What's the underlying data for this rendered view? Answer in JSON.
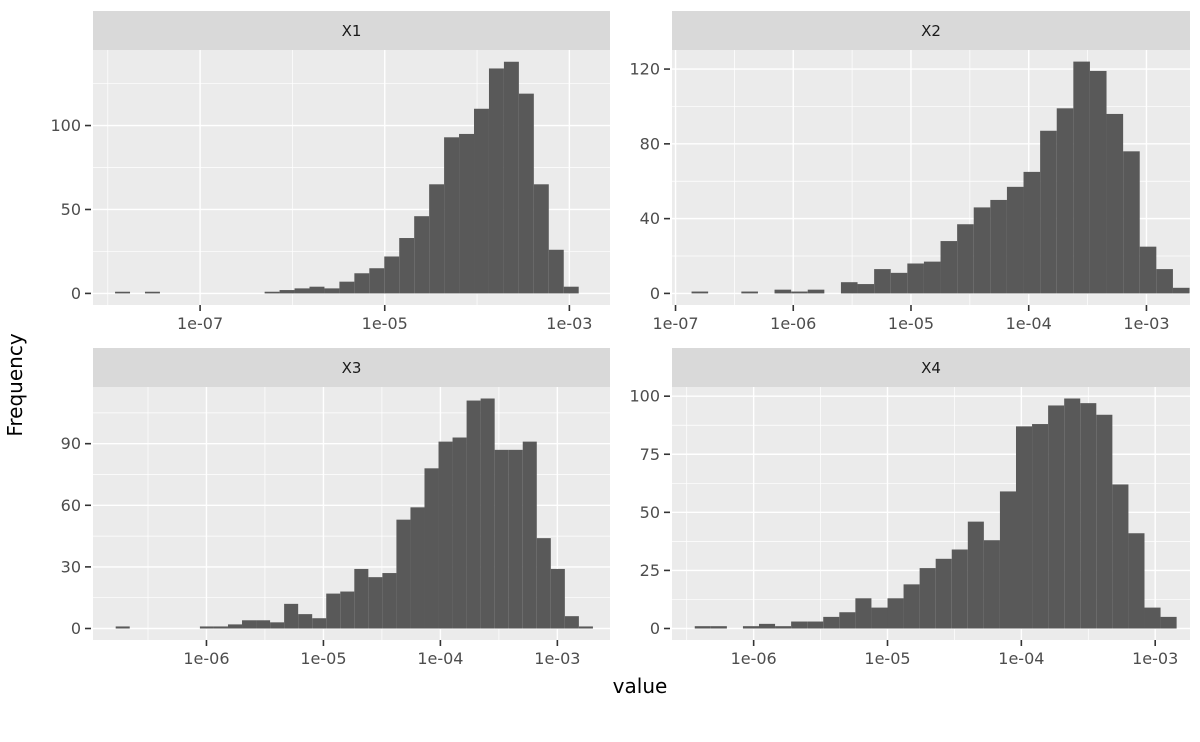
{
  "figure": {
    "kind": "faceted-histogram",
    "facet_variable_values": [
      "X1",
      "X2",
      "X3",
      "X4"
    ]
  },
  "axis_titles": {
    "y": "Frequency",
    "x": "value"
  },
  "colors": {
    "bar": "#595959",
    "panel_background": "#EBEBEB",
    "strip_background": "#D9D9D9",
    "gridline": "#FFFFFF",
    "tick_mark": "#333333",
    "tick_label": "#4D4D4D",
    "axis_title": "#000000",
    "strip_label": "#1A1A1A",
    "figure_background": "#FFFFFF"
  },
  "chart_data": [
    {
      "type": "bar",
      "facet": "X1",
      "x_scale": "log10",
      "grid": true,
      "x_domain_log10": [
        -8.16,
        -2.56
      ],
      "y_domain": [
        -6.9,
        145.0
      ],
      "x_ticks": [
        {
          "label": "1e-07",
          "log10": -7
        },
        {
          "label": "1e-05",
          "log10": -5
        },
        {
          "label": "1e-03",
          "log10": -3
        }
      ],
      "x_minor_log10": [
        -8,
        -6,
        -4
      ],
      "y_ticks": [
        0,
        50,
        100
      ],
      "y_minor": [
        25,
        75,
        125
      ],
      "bins": {
        "start_log10": -7.921,
        "binwidth_log10": 0.162,
        "counts": [
          1,
          0,
          1,
          0,
          0,
          0,
          0,
          0,
          0,
          0,
          1,
          2,
          3,
          4,
          3,
          7,
          12,
          15,
          22,
          33,
          46,
          65,
          93,
          95,
          110,
          134,
          138,
          119,
          65,
          26,
          4
        ]
      }
    },
    {
      "type": "bar",
      "facet": "X2",
      "x_scale": "log10",
      "grid": true,
      "x_domain_log10": [
        -7.03,
        -2.63
      ],
      "y_domain": [
        -6.2,
        130.2
      ],
      "x_ticks": [
        {
          "label": "1e-07",
          "log10": -7
        },
        {
          "label": "1e-06",
          "log10": -6
        },
        {
          "label": "1e-05",
          "log10": -5
        },
        {
          "label": "1e-04",
          "log10": -4
        },
        {
          "label": "1e-03",
          "log10": -3
        }
      ],
      "x_minor_log10": [
        -6.5,
        -5.5,
        -4.5,
        -3.5
      ],
      "y_ticks": [
        0,
        40,
        80,
        120
      ],
      "y_minor": [
        20,
        60,
        100
      ],
      "bins": {
        "start_log10": -6.864,
        "binwidth_log10": 0.141,
        "counts": [
          1,
          0,
          0,
          1,
          0,
          2,
          1,
          2,
          0,
          6,
          5,
          13,
          11,
          16,
          17,
          28,
          37,
          46,
          50,
          57,
          65,
          87,
          99,
          124,
          119,
          96,
          76,
          25,
          13,
          3
        ]
      }
    },
    {
      "type": "bar",
      "facet": "X3",
      "x_scale": "log10",
      "grid": true,
      "x_domain_log10": [
        -6.97,
        -2.55
      ],
      "y_domain": [
        -5.6,
        117.6
      ],
      "x_ticks": [
        {
          "label": "1e-06",
          "log10": -6
        },
        {
          "label": "1e-05",
          "log10": -5
        },
        {
          "label": "1e-04",
          "log10": -4
        },
        {
          "label": "1e-03",
          "log10": -3
        }
      ],
      "x_minor_log10": [
        -6.5,
        -5.5,
        -4.5,
        -3.5
      ],
      "y_ticks": [
        0,
        30,
        60,
        90
      ],
      "y_minor": [
        15,
        45,
        75,
        105
      ],
      "bins": {
        "start_log10": -6.776,
        "binwidth_log10": 0.12,
        "counts": [
          1,
          0,
          0,
          0,
          0,
          0,
          1,
          1,
          2,
          4,
          4,
          3,
          12,
          7,
          5,
          17,
          18,
          29,
          25,
          27,
          53,
          59,
          78,
          91,
          93,
          111,
          112,
          87,
          87,
          91,
          44,
          29,
          6,
          1
        ]
      }
    },
    {
      "type": "bar",
      "facet": "X4",
      "x_scale": "log10",
      "grid": true,
      "x_domain_log10": [
        -6.61,
        -2.74
      ],
      "y_domain": [
        -4.95,
        103.95
      ],
      "x_ticks": [
        {
          "label": "1e-06",
          "log10": -6
        },
        {
          "label": "1e-05",
          "log10": -5
        },
        {
          "label": "1e-04",
          "log10": -4
        },
        {
          "label": "1e-03",
          "log10": -3
        }
      ],
      "x_minor_log10": [
        -6.5,
        -5.5,
        -4.5,
        -3.5
      ],
      "y_ticks": [
        0,
        25,
        50,
        75,
        100
      ],
      "y_minor": [
        12.5,
        37.5,
        62.5,
        87.5
      ],
      "bins": {
        "start_log10": -6.44,
        "binwidth_log10": 0.12,
        "counts": [
          1,
          1,
          0,
          1,
          2,
          1,
          3,
          3,
          5,
          7,
          13,
          9,
          13,
          19,
          26,
          30,
          34,
          46,
          38,
          59,
          87,
          88,
          96,
          99,
          97,
          92,
          62,
          41,
          9,
          5
        ]
      }
    }
  ]
}
